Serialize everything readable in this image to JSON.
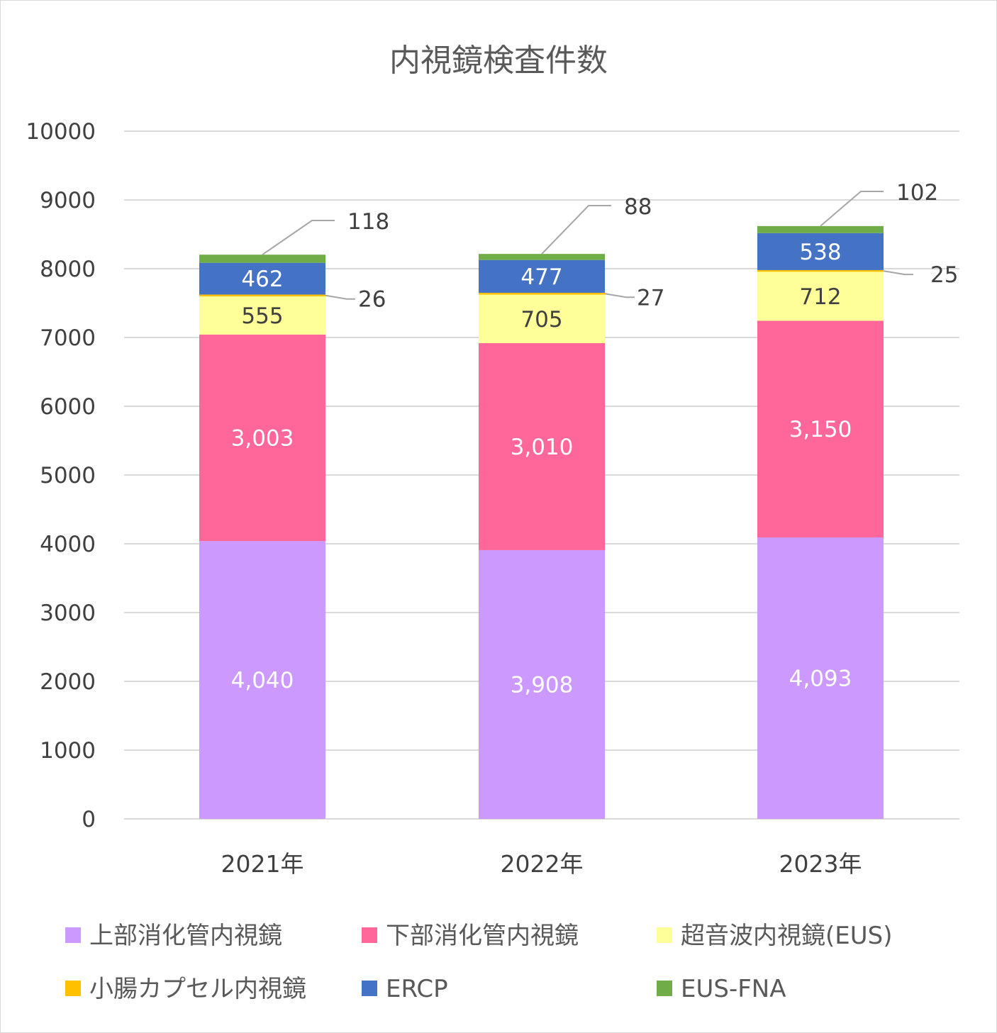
{
  "chart_data": {
    "type": "bar",
    "stacked": true,
    "title": "内視鏡検査件数",
    "categories": [
      "2021年",
      "2022年",
      "2023年"
    ],
    "ylim": [
      0,
      10000
    ],
    "yticks": [
      "0",
      "1000",
      "2000",
      "3000",
      "4000",
      "5000",
      "6000",
      "7000",
      "8000",
      "9000",
      "10000"
    ],
    "grid": true,
    "legend_position": "bottom",
    "series": [
      {
        "name": "上部消化管内視鏡",
        "color": "#CC99FF",
        "label_color": "#FFFFFF",
        "values": [
          4040,
          3908,
          4093
        ],
        "labels": [
          "4,040",
          "3,908",
          "4,093"
        ]
      },
      {
        "name": "下部消化管内視鏡",
        "color": "#FF6699",
        "label_color": "#FFFFFF",
        "values": [
          3003,
          3010,
          3150
        ],
        "labels": [
          "3,003",
          "3,010",
          "3,150"
        ]
      },
      {
        "name": "超音波内視鏡(EUS)",
        "color": "#FFFF99",
        "label_color": "#404040",
        "values": [
          555,
          705,
          712
        ],
        "labels": [
          "555",
          "705",
          "712"
        ]
      },
      {
        "name": "小腸カプセル内視鏡",
        "color": "#FFC000",
        "label_color": "#404040",
        "values": [
          26,
          27,
          25
        ],
        "labels": [
          "26",
          "27",
          "25"
        ],
        "callout": true
      },
      {
        "name": "ERCP",
        "color": "#4472C4",
        "label_color": "#FFFFFF",
        "values": [
          462,
          477,
          538
        ],
        "labels": [
          "462",
          "477",
          "538"
        ]
      },
      {
        "name": "EUS-FNA",
        "color": "#70AD47",
        "label_color": "#404040",
        "values": [
          118,
          88,
          102
        ],
        "labels": [
          "118",
          "88",
          "102"
        ],
        "callout": true
      }
    ]
  }
}
